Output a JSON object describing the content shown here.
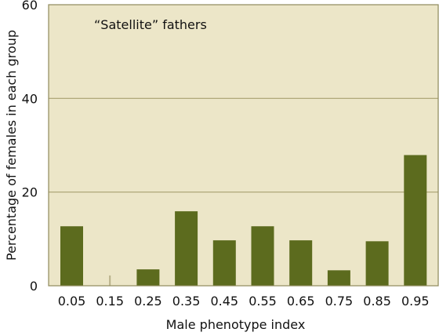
{
  "chart_data": {
    "type": "bar",
    "title": "",
    "annotation": "“Satellite” fathers",
    "xlabel": "Male phenotype index",
    "ylabel": "Percentage of females in each group",
    "categories": [
      "0.05",
      "0.15",
      "0.25",
      "0.35",
      "0.45",
      "0.55",
      "0.65",
      "0.75",
      "0.85",
      "0.95"
    ],
    "values": [
      12.7,
      2.2,
      3.5,
      15.9,
      9.7,
      12.7,
      9.7,
      3.3,
      9.5,
      27.9
    ],
    "ylim": [
      0,
      60
    ],
    "yticks": [
      0,
      20,
      40,
      60
    ],
    "grid": true,
    "colors": {
      "bar": "#5c6b1e",
      "plot_bg": "#ece6c8",
      "grid": "#a8a070",
      "border": "#8f8a5c"
    }
  }
}
